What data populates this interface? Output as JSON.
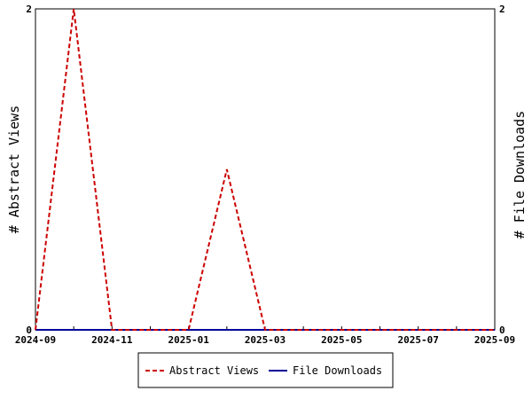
{
  "chart_data": {
    "type": "line",
    "x": [
      "2024-09",
      "2024-10",
      "2024-11",
      "2024-12",
      "2025-01",
      "2025-02",
      "2025-03",
      "2025-04",
      "2025-05",
      "2025-06",
      "2025-07",
      "2025-08",
      "2025-09"
    ],
    "x_tick_labels": [
      "2024-09",
      "2024-11",
      "2025-01",
      "2025-03",
      "2025-05",
      "2025-07",
      "2025-09"
    ],
    "series": [
      {
        "name": "Abstract Views",
        "axis": "left",
        "color": "#cc0000",
        "dash": "dashed",
        "values": [
          0,
          2,
          0,
          0,
          0,
          1,
          0,
          0,
          0,
          0,
          0,
          0,
          0
        ]
      },
      {
        "name": "File Downloads",
        "axis": "right",
        "color": "#000099",
        "dash": "solid",
        "values": [
          0,
          0,
          0,
          0,
          0,
          0,
          0,
          0,
          0,
          0,
          0,
          0,
          0
        ]
      }
    ],
    "ylabel_left": "# Abstract Views",
    "ylabel_right": "# File Downloads",
    "ylim_left": [
      0,
      2
    ],
    "ylim_right": [
      0,
      2
    ],
    "y_ticks_left": [
      "0",
      "2"
    ],
    "y_ticks_right": [
      "0",
      "2"
    ],
    "legend_placement": "bottom-center",
    "grid": false
  }
}
